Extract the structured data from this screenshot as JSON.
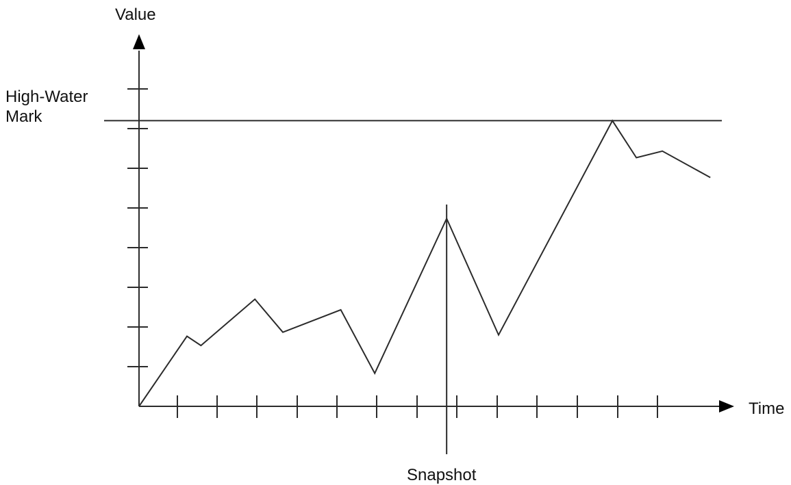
{
  "labels": {
    "y_axis": "Value",
    "x_axis": "Time",
    "snapshot": "Snapshot",
    "high_water_mark_line1": "High-Water",
    "high_water_mark_line2": "Mark"
  },
  "colors": {
    "line": "#2b2b2b",
    "text": "#111111",
    "background": "#ffffff"
  },
  "chart_data": {
    "type": "line",
    "y_ticks": 8,
    "x_ticks": 13,
    "series": [
      {
        "points": [
          [
            0,
            0
          ],
          [
            1.2,
            5.3
          ],
          [
            1.55,
            4.6
          ],
          [
            2.9,
            8.1
          ],
          [
            3.6,
            5.6
          ],
          [
            5.05,
            7.3
          ],
          [
            5.9,
            2.5
          ],
          [
            7.7,
            14.2
          ],
          [
            9.0,
            5.4
          ],
          [
            11.85,
            21.6
          ],
          [
            12.45,
            18.8
          ],
          [
            13.1,
            19.3
          ],
          [
            14.3,
            17.3
          ]
        ]
      }
    ],
    "high_water_mark": 21.6,
    "snapshot_x": 7.7,
    "xlim": [
      0,
      15.0
    ],
    "ylim": [
      0,
      24.0
    ]
  }
}
